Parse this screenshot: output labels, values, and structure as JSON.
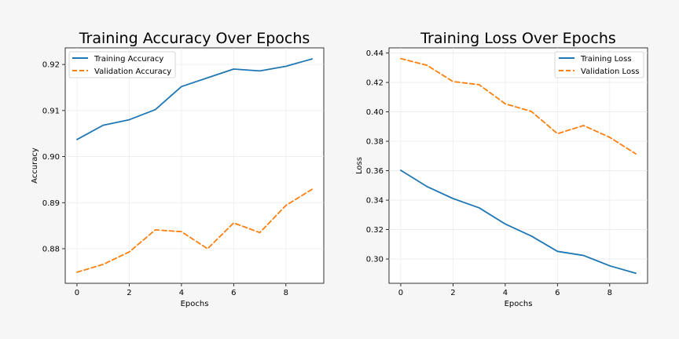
{
  "chart_data": [
    {
      "type": "line",
      "title": "Training Accuracy Over Epochs",
      "xlabel": "Epochs",
      "ylabel": "Accuracy",
      "xlim": [
        -0.45,
        9.45
      ],
      "ylim": [
        0.8725,
        0.9236
      ],
      "xticks": [
        0,
        2,
        4,
        6,
        8
      ],
      "xtick_labels": [
        "0",
        "2",
        "4",
        "6",
        "8"
      ],
      "yticks": [
        0.88,
        0.89,
        0.9,
        0.91,
        0.92
      ],
      "ytick_labels": [
        "0.88",
        "0.89",
        "0.90",
        "0.91",
        "0.92"
      ],
      "grid": true,
      "legend_position": "upper-left",
      "x": [
        0,
        1,
        2,
        3,
        4,
        5,
        6,
        7,
        8,
        9
      ],
      "series": [
        {
          "name": "Training Accuracy",
          "color": "#1f77b4",
          "style": "solid",
          "values": [
            0.9037,
            0.9068,
            0.908,
            0.9102,
            0.9152,
            0.9171,
            0.919,
            0.9186,
            0.9196,
            0.9212
          ]
        },
        {
          "name": "Validation Accuracy",
          "color": "#ff7f0e",
          "style": "dashed",
          "values": [
            0.8749,
            0.8766,
            0.8793,
            0.8841,
            0.8837,
            0.88,
            0.8856,
            0.8835,
            0.8894,
            0.8929
          ]
        }
      ]
    },
    {
      "type": "line",
      "title": "Training Loss Over Epochs",
      "xlabel": "Epochs",
      "ylabel": "Loss",
      "xlim": [
        -0.45,
        9.45
      ],
      "ylim": [
        0.2835,
        0.4435
      ],
      "xticks": [
        0,
        2,
        4,
        6,
        8
      ],
      "xtick_labels": [
        "0",
        "2",
        "4",
        "6",
        "8"
      ],
      "yticks": [
        0.3,
        0.32,
        0.34,
        0.36,
        0.38,
        0.4,
        0.42,
        0.44
      ],
      "ytick_labels": [
        "0.30",
        "0.32",
        "0.34",
        "0.36",
        "0.38",
        "0.40",
        "0.42",
        "0.44"
      ],
      "grid": true,
      "legend_position": "upper-right",
      "x": [
        0,
        1,
        2,
        3,
        4,
        5,
        6,
        7,
        8,
        9
      ],
      "series": [
        {
          "name": "Training Loss",
          "color": "#1f77b4",
          "style": "solid",
          "values": [
            0.3603,
            0.3493,
            0.3411,
            0.3348,
            0.3238,
            0.3156,
            0.3052,
            0.3024,
            0.2954,
            0.2903
          ]
        },
        {
          "name": "Validation Loss",
          "color": "#ff7f0e",
          "style": "dashed",
          "values": [
            0.4362,
            0.4317,
            0.4206,
            0.4185,
            0.4055,
            0.4003,
            0.3852,
            0.3907,
            0.3827,
            0.3715
          ]
        }
      ]
    }
  ]
}
